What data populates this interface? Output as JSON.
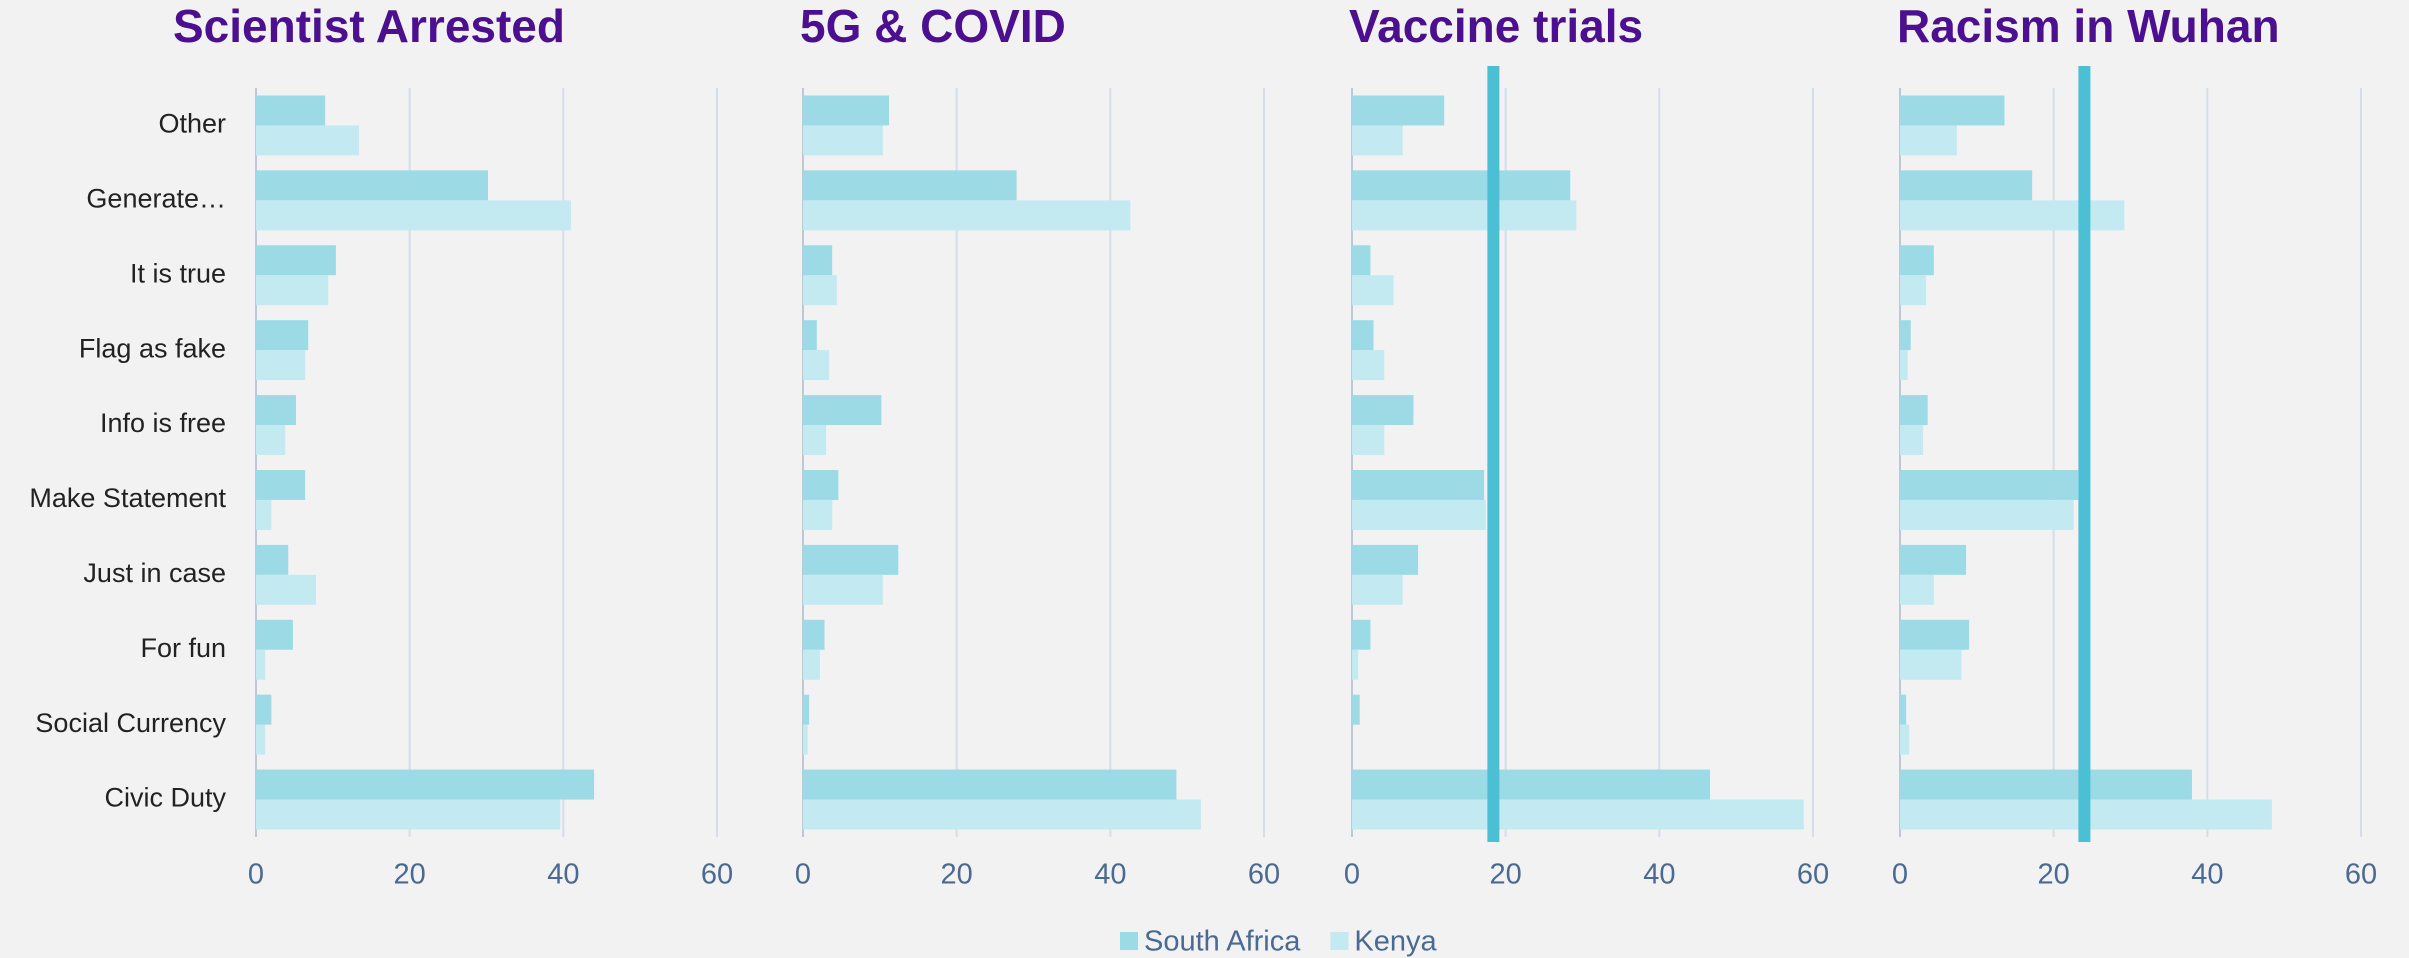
{
  "chart_data": [
    {
      "type": "bar",
      "orientation": "horizontal",
      "title": "Scientist Arrested",
      "categories": [
        "Other",
        "Generate…",
        "It is true",
        "Flag as fake",
        "Info is free",
        "Make Statement",
        "Just in case",
        "For fun",
        "Social Currency",
        "Civic Duty"
      ],
      "series": [
        {
          "name": "South Africa",
          "color": "#9cdbe6",
          "values": [
            9,
            30.2,
            10.4,
            6.8,
            5.2,
            6.4,
            4.2,
            4.8,
            2,
            44
          ]
        },
        {
          "name": "Kenya",
          "color": "#c3e9f1",
          "values": [
            13.4,
            41,
            9.4,
            6.4,
            3.8,
            2,
            7.8,
            1.2,
            1.2,
            39.6
          ]
        }
      ],
      "xlim": [
        0,
        60
      ],
      "xticks": [
        0,
        20,
        40,
        60
      ],
      "grid": true
    },
    {
      "type": "bar",
      "orientation": "horizontal",
      "title": "5G & COVID",
      "series": [
        {
          "name": "South Africa",
          "color": "#9cdbe6",
          "values": [
            11.2,
            27.8,
            3.8,
            1.8,
            10.2,
            4.6,
            12.4,
            2.8,
            0.8,
            48.6
          ]
        },
        {
          "name": "Kenya",
          "color": "#c3e9f1",
          "values": [
            10.4,
            42.6,
            4.4,
            3.4,
            3,
            3.8,
            10.4,
            2.2,
            0.6,
            51.8
          ]
        }
      ],
      "xlim": [
        0,
        60
      ],
      "xticks": [
        0,
        20,
        40,
        60
      ],
      "grid": true
    },
    {
      "type": "bar",
      "orientation": "horizontal",
      "title": "Vaccine trials",
      "series": [
        {
          "name": "South Africa",
          "color": "#9cdbe6",
          "values": [
            12,
            28.4,
            2.4,
            2.8,
            8,
            17.2,
            8.6,
            2.4,
            1,
            46.6
          ]
        },
        {
          "name": "Kenya",
          "color": "#c3e9f1",
          "values": [
            6.6,
            29.2,
            5.4,
            4.2,
            4.2,
            17.4,
            6.6,
            0.8,
            0,
            58.8
          ]
        }
      ],
      "reference_line": 18.4,
      "reference_color": "#4bbfd4",
      "xlim": [
        0,
        60
      ],
      "xticks": [
        0,
        20,
        40,
        60
      ],
      "grid": true
    },
    {
      "type": "bar",
      "orientation": "horizontal",
      "title": "Racism in Wuhan",
      "series": [
        {
          "name": "South Africa",
          "color": "#9cdbe6",
          "values": [
            13.6,
            17.2,
            4.4,
            1.4,
            3.6,
            23.2,
            8.6,
            9,
            0.8,
            38
          ]
        },
        {
          "name": "Kenya",
          "color": "#c3e9f1",
          "values": [
            7.4,
            29.2,
            3.4,
            1,
            3,
            22.6,
            4.4,
            8,
            1.2,
            48.4
          ]
        }
      ],
      "reference_line": 24,
      "reference_color": "#4bbfd4",
      "xlim": [
        0,
        60
      ],
      "xticks": [
        0,
        20,
        40,
        60
      ],
      "grid": true
    }
  ]
}
